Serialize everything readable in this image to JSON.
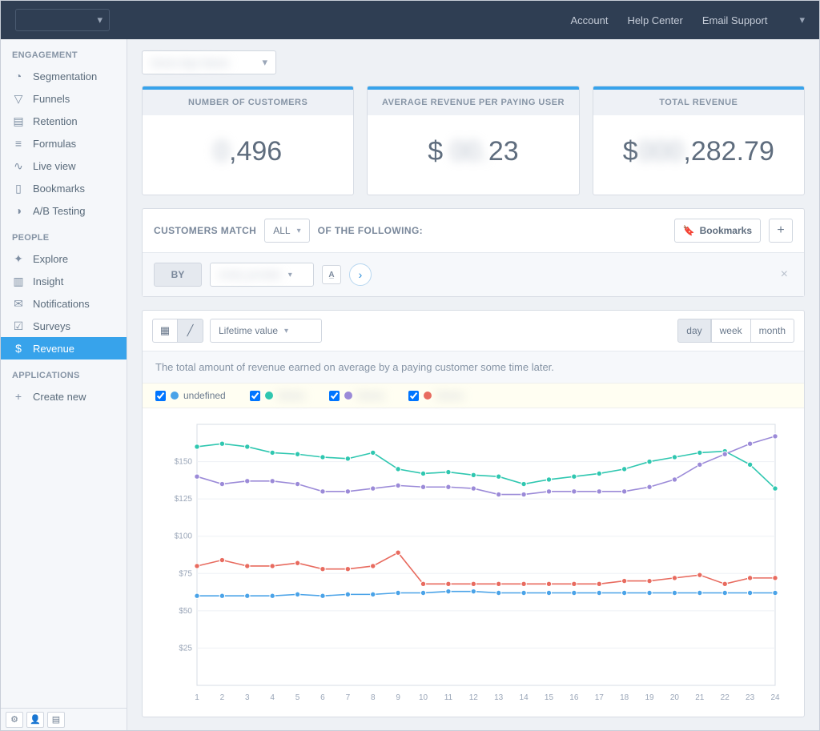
{
  "topbar": {
    "project": "",
    "links": {
      "account": "Account",
      "help": "Help Center",
      "support": "Email Support"
    }
  },
  "sidebar": {
    "sections": {
      "engagement": {
        "title": "ENGAGEMENT",
        "items": [
          {
            "label": "Segmentation",
            "icon": "◔"
          },
          {
            "label": "Funnels",
            "icon": "▽"
          },
          {
            "label": "Retention",
            "icon": "▤"
          },
          {
            "label": "Formulas",
            "icon": "≡"
          },
          {
            "label": "Live view",
            "icon": "∿"
          },
          {
            "label": "Bookmarks",
            "icon": "▯"
          },
          {
            "label": "A/B Testing",
            "icon": "◑"
          }
        ]
      },
      "people": {
        "title": "PEOPLE",
        "items": [
          {
            "label": "Explore",
            "icon": "✦"
          },
          {
            "label": "Insight",
            "icon": "▥"
          },
          {
            "label": "Notifications",
            "icon": "✉"
          },
          {
            "label": "Surveys",
            "icon": "☑"
          },
          {
            "label": "Revenue",
            "icon": "$",
            "active": true
          }
        ]
      },
      "applications": {
        "title": "APPLICATIONS",
        "create": "Create new"
      }
    }
  },
  "app_select": "",
  "kpi": {
    "customers": {
      "title": "NUMBER OF CUSTOMERS",
      "prefix_hidden": "0",
      "value": ",496"
    },
    "arppu": {
      "title": "AVERAGE REVENUE PER PAYING USER",
      "prefix": "$ ",
      "hidden": "00.",
      "value": "23"
    },
    "total": {
      "title": "TOTAL REVENUE",
      "prefix": "$",
      "hidden": "000",
      "value": ",282.79"
    }
  },
  "filter": {
    "label_left": "CUSTOMERS MATCH",
    "all": "ALL",
    "label_right": "OF THE FOLLOWING:",
    "bookmarks": "Bookmarks",
    "by": "BY",
    "property": ""
  },
  "chart": {
    "metric_select": "Lifetime value",
    "periods": {
      "day": "day",
      "week": "week",
      "month": "month"
    },
    "description": "The total amount of revenue earned on average by a paying customer some time later.",
    "legend": [
      {
        "label": "undefined",
        "color": "#4aa3e8",
        "hidden_label": false
      },
      {
        "label": "Gmail",
        "color": "#2fc7b0",
        "hidden_label": true
      },
      {
        "label": "Production",
        "color": "#9b8ad8",
        "hidden_label": true
      },
      {
        "label": "Beta",
        "color": "#e86b5f",
        "hidden_label": true
      }
    ],
    "y": {
      "min": 0,
      "max": 175,
      "ticks": [
        25,
        50,
        75,
        100,
        125,
        150
      ],
      "prefix": "$"
    },
    "x": {
      "min": 1,
      "max": 24
    },
    "series": {
      "undefined": [
        60,
        60,
        60,
        60,
        61,
        60,
        61,
        61,
        62,
        62,
        63,
        63,
        62,
        62,
        62,
        62,
        62,
        62,
        62,
        62,
        62,
        62,
        62,
        62
      ],
      "gmail": [
        160,
        162,
        160,
        156,
        155,
        153,
        152,
        156,
        145,
        142,
        143,
        141,
        140,
        135,
        138,
        140,
        142,
        145,
        150,
        153,
        156,
        157,
        148,
        132
      ],
      "prod": [
        140,
        135,
        137,
        137,
        135,
        130,
        130,
        132,
        134,
        133,
        133,
        132,
        128,
        128,
        130,
        130,
        130,
        130,
        133,
        138,
        148,
        155,
        162,
        167
      ],
      "beta": [
        80,
        84,
        80,
        80,
        82,
        78,
        78,
        80,
        89,
        68,
        68,
        68,
        68,
        68,
        68,
        68,
        68,
        70,
        70,
        72,
        74,
        68,
        72,
        72
      ]
    },
    "colors": {
      "undefined": "#4aa3e8",
      "gmail": "#2fc7b0",
      "prod": "#9b8ad8",
      "beta": "#e86b5f"
    },
    "background": "#ffffff",
    "grid_color": "#eef1f5",
    "marker_radius": 3.2,
    "line_width": 1.6
  }
}
